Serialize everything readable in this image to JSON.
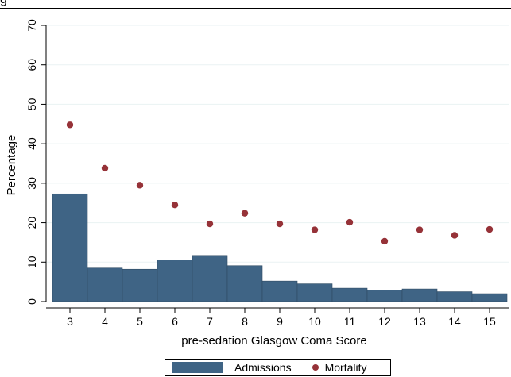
{
  "header_fragment": "g",
  "chart_data": {
    "type": "bar",
    "xlabel": "pre-sedation Glasgow Coma Score",
    "ylabel": "Percentage",
    "categories": [
      "3",
      "4",
      "5",
      "6",
      "7",
      "8",
      "9",
      "10",
      "11",
      "12",
      "13",
      "14",
      "15"
    ],
    "ylim": [
      0,
      70
    ],
    "yticks": [
      0,
      10,
      20,
      30,
      40,
      50,
      60,
      70
    ],
    "grid": "horizontal",
    "legend_position": "bottom",
    "series": [
      {
        "name": "Admissions",
        "type": "bar",
        "color": "#3f6485",
        "values": [
          27.3,
          8.5,
          8.2,
          10.6,
          11.7,
          9.1,
          5.2,
          4.5,
          3.4,
          2.9,
          3.2,
          2.5,
          2.0
        ]
      },
      {
        "name": "Mortality",
        "type": "scatter",
        "color": "#963238",
        "values": [
          44.8,
          33.8,
          29.5,
          24.5,
          19.7,
          22.4,
          19.7,
          18.2,
          20.1,
          15.3,
          18.2,
          16.8,
          18.3
        ]
      }
    ]
  }
}
